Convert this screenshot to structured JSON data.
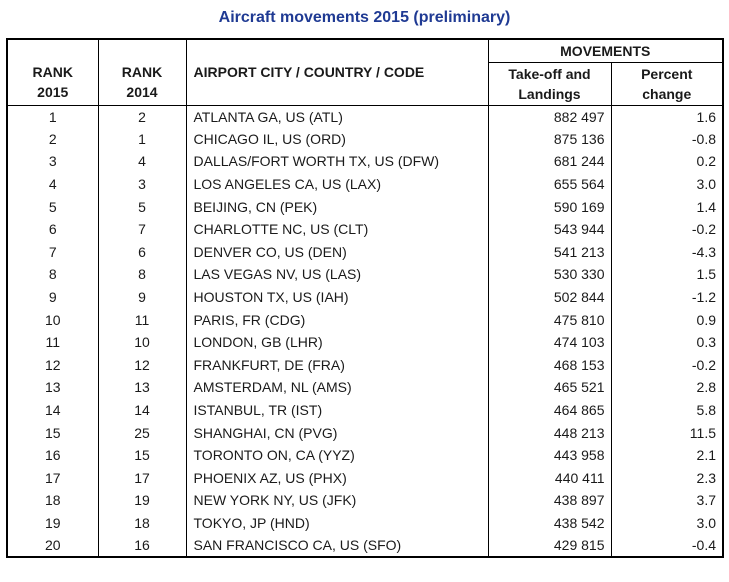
{
  "title": "Aircraft movements 2015 (preliminary)",
  "colors": {
    "title_blue": "#1F3A93",
    "border_black": "#000000",
    "text_black": "#1a1a1a",
    "background": "#ffffff"
  },
  "headers": {
    "rank_2015": [
      "RANK",
      "2015"
    ],
    "rank_2014": [
      "RANK",
      "2014"
    ],
    "airport": "AIRPORT CITY / COUNTRY / CODE",
    "movements": "MOVEMENTS",
    "takeoff": [
      "Take-off and",
      "Landings"
    ],
    "percent": [
      "Percent",
      "change"
    ]
  },
  "chart_data": {
    "type": "table",
    "title": "Aircraft movements 2015 (preliminary)",
    "columns": [
      "RANK 2015",
      "RANK 2014",
      "AIRPORT CITY / COUNTRY / CODE",
      "MOVEMENTS - Take-off and Landings",
      "MOVEMENTS - Percent change"
    ],
    "rows": [
      [
        "1",
        "2",
        "ATLANTA GA, US (ATL)",
        "882 497",
        "1.6"
      ],
      [
        "2",
        "1",
        "CHICAGO IL, US (ORD)",
        "875 136",
        "-0.8"
      ],
      [
        "3",
        "4",
        "DALLAS/FORT WORTH TX, US (DFW)",
        "681 244",
        "0.2"
      ],
      [
        "4",
        "3",
        "LOS ANGELES CA, US (LAX)",
        "655 564",
        "3.0"
      ],
      [
        "5",
        "5",
        "BEIJING, CN (PEK)",
        "590 169",
        "1.4"
      ],
      [
        "6",
        "7",
        "CHARLOTTE NC, US (CLT)",
        "543 944",
        "-0.2"
      ],
      [
        "7",
        "6",
        "DENVER CO, US (DEN)",
        "541 213",
        "-4.3"
      ],
      [
        "8",
        "8",
        "LAS VEGAS NV, US (LAS)",
        "530 330",
        "1.5"
      ],
      [
        "9",
        "9",
        "HOUSTON TX, US (IAH)",
        "502 844",
        "-1.2"
      ],
      [
        "10",
        "11",
        "PARIS, FR (CDG)",
        "475 810",
        "0.9"
      ],
      [
        "11",
        "10",
        "LONDON, GB (LHR)",
        "474 103",
        "0.3"
      ],
      [
        "12",
        "12",
        "FRANKFURT, DE (FRA)",
        "468 153",
        "-0.2"
      ],
      [
        "13",
        "13",
        "AMSTERDAM, NL (AMS)",
        "465 521",
        "2.8"
      ],
      [
        "14",
        "14",
        "ISTANBUL, TR (IST)",
        "464 865",
        "5.8"
      ],
      [
        "15",
        "25",
        "SHANGHAI, CN (PVG)",
        "448 213",
        "11.5"
      ],
      [
        "16",
        "15",
        "TORONTO ON, CA (YYZ)",
        "443 958",
        "2.1"
      ],
      [
        "17",
        "17",
        "PHOENIX AZ, US (PHX)",
        "440 411",
        "2.3"
      ],
      [
        "18",
        "19",
        "NEW YORK NY, US (JFK)",
        "438 897",
        "3.7"
      ],
      [
        "19",
        "18",
        "TOKYO, JP (HND)",
        "438 542",
        "3.0"
      ],
      [
        "20",
        "16",
        "SAN FRANCISCO CA, US (SFO)",
        "429 815",
        "-0.4"
      ]
    ]
  }
}
